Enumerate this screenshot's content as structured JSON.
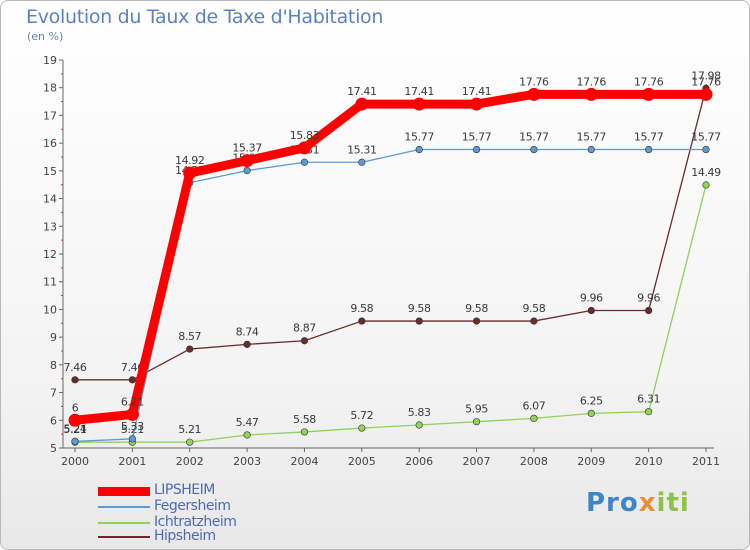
{
  "title": "Evolution du Taux de Taxe d'Habitation",
  "unit": "(en %)",
  "logo": {
    "part1": "Pro",
    "part2": "x",
    "part3": "iti"
  },
  "chart_data": {
    "type": "line",
    "x": [
      "2000",
      "2001",
      "2002",
      "2003",
      "2004",
      "2005",
      "2006",
      "2007",
      "2008",
      "2009",
      "2010",
      "2011"
    ],
    "ylim": [
      5,
      19
    ],
    "yticks": [
      "5",
      "6",
      "7",
      "8",
      "9",
      "10",
      "11",
      "12",
      "13",
      "14",
      "15",
      "16",
      "17",
      "18",
      "19"
    ],
    "grid": false,
    "legend_position": "bottom-left",
    "series": [
      {
        "name": "Ichtratzheim",
        "color": "#8fd35a",
        "values": [
          5.21,
          5.21,
          5.21,
          5.47,
          5.58,
          5.72,
          5.83,
          5.95,
          6.07,
          6.25,
          6.31,
          14.49
        ],
        "labels": [
          "5.21",
          "5.21",
          "5.21",
          "5.47",
          "5.58",
          "5.72",
          "5.83",
          "5.95",
          "6.07",
          "6.25",
          "6.31",
          "14.49"
        ]
      },
      {
        "name": "Hipsheim",
        "color": "#6b2b2b",
        "values": [
          7.46,
          7.46,
          8.57,
          8.74,
          8.87,
          9.58,
          9.58,
          9.58,
          9.58,
          9.96,
          9.96,
          17.98
        ],
        "labels": [
          "7.46",
          "7.46",
          "8.57",
          "8.74",
          "8.87",
          "9.58",
          "9.58",
          "9.58",
          "9.58",
          "9.96",
          "9.96",
          "17.98"
        ]
      },
      {
        "name": "Fegersheim",
        "color": "#5a9bd5",
        "values": [
          5.24,
          5.33,
          14.57,
          15.01,
          15.31,
          15.31,
          15.77,
          15.77,
          15.77,
          15.77,
          15.77,
          15.77
        ],
        "labels": [
          "5.24",
          "5.33",
          "14.57",
          "15.01",
          "15.31",
          "15.31",
          "15.77",
          "15.77",
          "15.77",
          "15.77",
          "15.77",
          "15.77"
        ]
      },
      {
        "name": "LIPSHEIM",
        "color": "#ff0000",
        "values": [
          6,
          6.21,
          14.92,
          15.37,
          15.83,
          17.41,
          17.41,
          17.41,
          17.76,
          17.76,
          17.76,
          17.76
        ],
        "labels": [
          "6",
          "6.21",
          "14.92",
          "15.37",
          "15.83",
          "17.41",
          "17.41",
          "17.41",
          "17.76",
          "17.76",
          "17.76",
          "17.76"
        ]
      }
    ],
    "legend": [
      {
        "name": "LIPSHEIM",
        "color": "#ff0000"
      },
      {
        "name": "Fegersheim",
        "color": "#5a9bd5"
      },
      {
        "name": "Ichtratzheim",
        "color": "#8fd35a"
      },
      {
        "name": "Hipsheim",
        "color": "#6b2b2b"
      }
    ]
  }
}
